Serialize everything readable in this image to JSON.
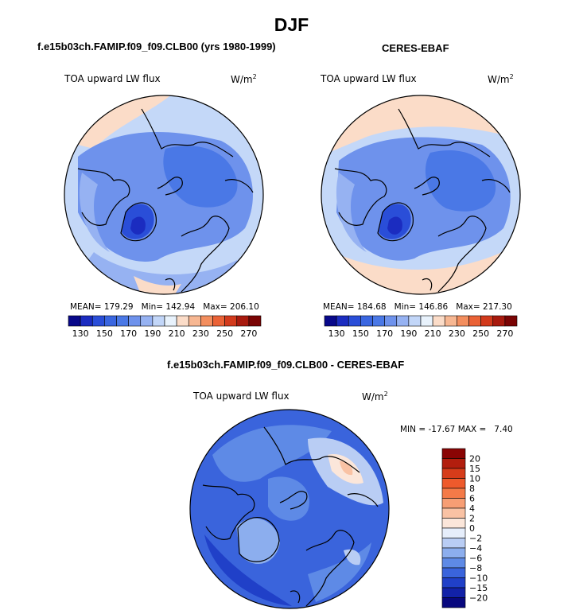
{
  "figure": {
    "season": "DJF",
    "variable": "TOA upward LW flux",
    "units_base": "W/m",
    "units_exp": "2"
  },
  "panels": {
    "model": {
      "title": "f.e15b03ch.FAMIP.f09_f09.CLB00 (yrs 1980-1999)",
      "mean_label": "MEAN=",
      "mean": "179.29",
      "min_label": "Min=",
      "min": "142.94",
      "max_label": "Max=",
      "max": "206.10"
    },
    "obs": {
      "title": "CERES-EBAF",
      "mean_label": "MEAN=",
      "mean": "184.68",
      "min_label": "Min=",
      "min": "146.86",
      "max_label": "Max=",
      "max": "217.30"
    },
    "diff": {
      "title": "f.e15b03ch.FAMIP.f09_f09.CLB00 - CERES-EBAF",
      "min_label": "MIN =",
      "min": "-17.67",
      "max_label": "MAX =",
      "max": "7.40"
    }
  },
  "chart_data": [
    {
      "type": "heatmap",
      "subtype": "polar-stereographic contour map (North Pole)",
      "title": "f.e15b03ch.FAMIP.f09_f09.CLB00 (yrs 1980-1999)",
      "variable": "TOA upward LW flux",
      "units": "W/m2",
      "mean": 179.29,
      "min": 142.94,
      "max": 206.1,
      "colorbar": {
        "orientation": "horizontal",
        "levels": [
          130,
          140,
          150,
          160,
          170,
          180,
          190,
          200,
          210,
          220,
          230,
          240,
          250,
          260,
          270
        ],
        "tick_labels": [
          "130",
          "150",
          "170",
          "190",
          "210",
          "230",
          "250",
          "270"
        ],
        "colors": [
          "#08088a",
          "#1b2cc0",
          "#2a4ed8",
          "#3a66e0",
          "#4a78e6",
          "#6e92ec",
          "#96b2f2",
          "#c2d6f8",
          "#e8f2fc",
          "#fbdcc8",
          "#f7b792",
          "#f38e5e",
          "#ea6236",
          "#d23a1c",
          "#a81a0e",
          "#7a0404"
        ]
      }
    },
    {
      "type": "heatmap",
      "subtype": "polar-stereographic contour map (North Pole)",
      "title": "CERES-EBAF",
      "variable": "TOA upward LW flux",
      "units": "W/m2",
      "mean": 184.68,
      "min": 146.86,
      "max": 217.3,
      "colorbar": {
        "orientation": "horizontal",
        "levels": [
          130,
          140,
          150,
          160,
          170,
          180,
          190,
          200,
          210,
          220,
          230,
          240,
          250,
          260,
          270
        ],
        "tick_labels": [
          "130",
          "150",
          "170",
          "190",
          "210",
          "230",
          "250",
          "270"
        ],
        "colors": [
          "#08088a",
          "#1b2cc0",
          "#2a4ed8",
          "#3a66e0",
          "#4a78e6",
          "#6e92ec",
          "#96b2f2",
          "#c2d6f8",
          "#e8f2fc",
          "#fbdcc8",
          "#f7b792",
          "#f38e5e",
          "#ea6236",
          "#d23a1c",
          "#a81a0e",
          "#7a0404"
        ]
      }
    },
    {
      "type": "heatmap",
      "subtype": "polar-stereographic difference map (North Pole)",
      "title": "f.e15b03ch.FAMIP.f09_f09.CLB00 - CERES-EBAF",
      "variable": "TOA upward LW flux",
      "units": "W/m2",
      "min": -17.67,
      "max": 7.4,
      "colorbar": {
        "orientation": "vertical",
        "levels": [
          -20,
          -15,
          -10,
          -8,
          -6,
          -4,
          -2,
          0,
          2,
          4,
          6,
          8,
          10,
          15,
          20
        ],
        "tick_labels": [
          "20",
          "15",
          "10",
          "8",
          "6",
          "4",
          "2",
          "0",
          "−2",
          "−4",
          "−6",
          "−8",
          "−10",
          "−15",
          "−20"
        ],
        "colors_top_to_bottom": [
          "#8a0404",
          "#b21e0e",
          "#d63c1a",
          "#ee5a2c",
          "#f47a48",
          "#f79e74",
          "#f9c2a4",
          "#fbe6da",
          "#e6eefb",
          "#b9cdf4",
          "#8caeee",
          "#5e8ae6",
          "#3a64dc",
          "#2040c8",
          "#1222a8",
          "#08087e"
        ]
      }
    }
  ]
}
